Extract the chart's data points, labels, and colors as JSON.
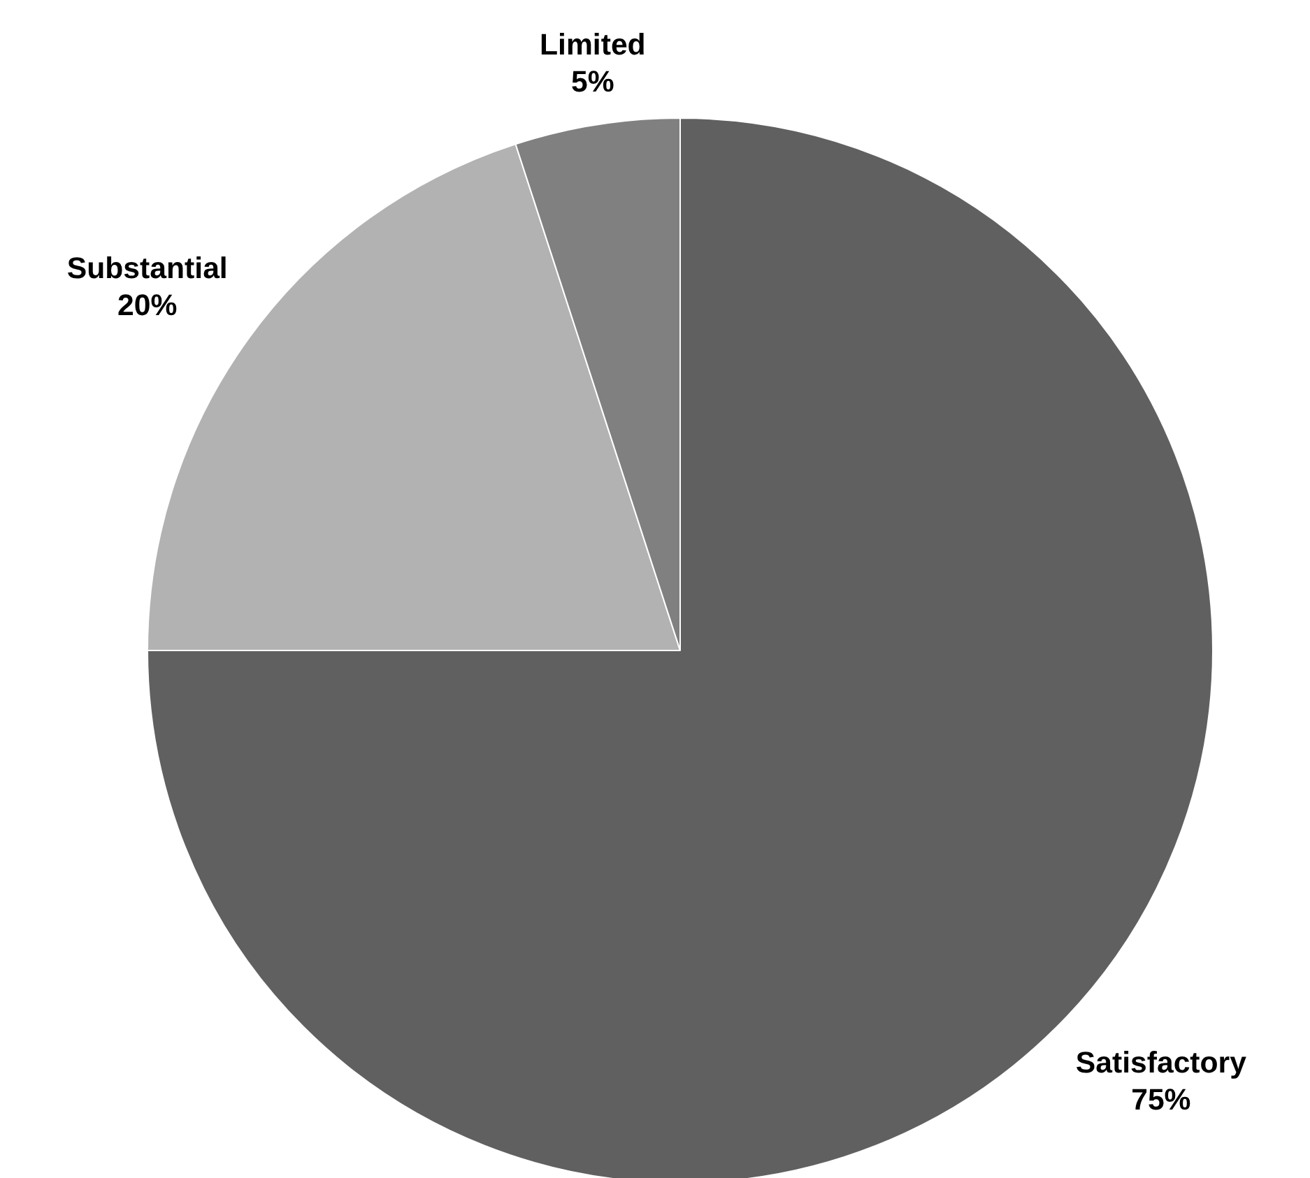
{
  "chart_data": {
    "type": "pie",
    "categories": [
      "Satisfactory",
      "Substantial",
      "Limited"
    ],
    "values": [
      75,
      20,
      5
    ],
    "colors": [
      "#606060",
      "#b2b2b2",
      "#808080"
    ],
    "value_labels": [
      "75%",
      "20%",
      "5%"
    ]
  }
}
